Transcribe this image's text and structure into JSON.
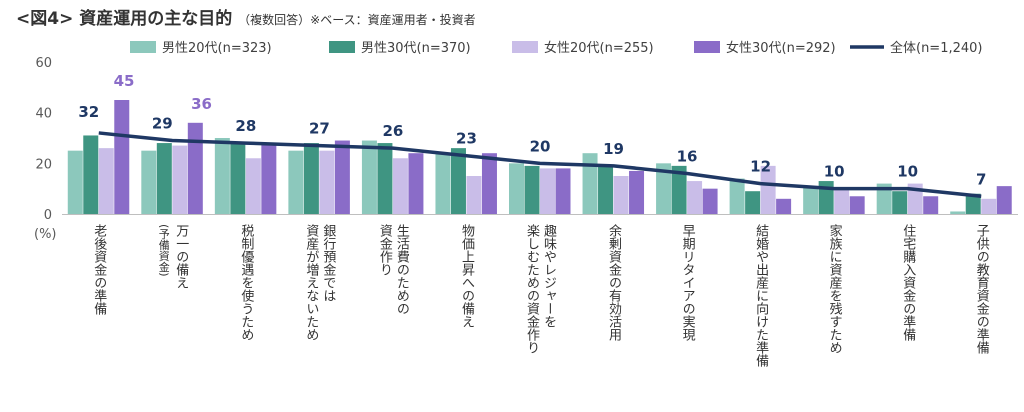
{
  "title": "<図4> 資産運用の主な目的",
  "subtitle": "（複数回答）※ベース：資産運用者・投資者",
  "unit_label": "(%)",
  "colors": {
    "male20": "#8cc8bc",
    "male30": "#3f9582",
    "female20": "#c9bde8",
    "female30": "#8a6cc8",
    "total_line": "#1f3864",
    "label_female": "#8a6cc8"
  },
  "chart_data": {
    "type": "bar",
    "ylim": [
      0,
      60
    ],
    "yticks": [
      0,
      20,
      40,
      60
    ],
    "legend_position": "top",
    "categories": [
      [
        "老後資金の準備"
      ],
      [
        "万一の備え",
        "(予備資金)"
      ],
      [
        "税制優遇を使うため"
      ],
      [
        "銀行預金では",
        "資産が増えないため"
      ],
      [
        "生活費のための",
        "資金作り"
      ],
      [
        "物価上昇への備え"
      ],
      [
        "趣味やレジャーを",
        "楽しむための資金作り"
      ],
      [
        "余剰資金の有効活用"
      ],
      [
        "早期リタイアの実現"
      ],
      [
        "結婚や出産に向けた準備"
      ],
      [
        "家族に資産を残すため"
      ],
      [
        "住宅購入資金の準備"
      ],
      [
        "子供の教育資金の準備"
      ]
    ],
    "series": [
      {
        "name": "男性20代(n=323)",
        "values": [
          25,
          25,
          30,
          25,
          29,
          24,
          20,
          24,
          20,
          14,
          11,
          12,
          1
        ]
      },
      {
        "name": "男性30代(n=370)",
        "values": [
          31,
          28,
          28,
          28,
          28,
          26,
          19,
          19,
          19,
          9,
          13,
          9,
          8
        ]
      },
      {
        "name": "女性20代(n=255)",
        "values": [
          26,
          27,
          22,
          25,
          22,
          15,
          18,
          15,
          13,
          19,
          10,
          12,
          6
        ]
      },
      {
        "name": "女性30代(n=292)",
        "values": [
          45,
          36,
          28,
          29,
          24,
          24,
          18,
          17,
          10,
          6,
          7,
          7,
          11
        ]
      }
    ],
    "total": {
      "name": "全体(n=1,240)",
      "values": [
        32,
        29,
        28,
        27,
        26,
        23,
        20,
        19,
        16,
        12,
        10,
        10,
        7
      ]
    },
    "labeled_female30": [
      45,
      36
    ]
  }
}
